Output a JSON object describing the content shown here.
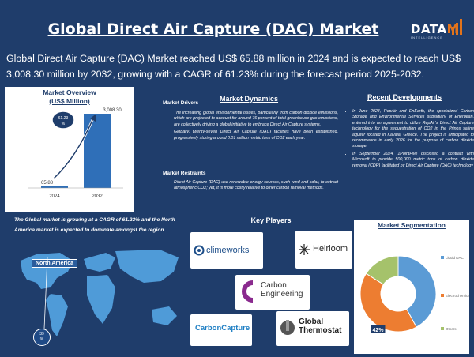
{
  "title": "Global Direct Air Capture (DAC) Market",
  "logo": {
    "main": "DATA",
    "tail": "M",
    "tagline": "INTELLIGENCE"
  },
  "lead": "Global Direct Air Capture (DAC) Market reached US$ 65.88 million in 2024 and is expected to reach US$ 3,008.30 million by 2032, growing with a CAGR of 61.23% during the forecast period 2025-2032.",
  "overview": {
    "heading": "Market Overview",
    "subheading": "(US$ Million)",
    "cagr_label": "61.23",
    "cagr_unit": "%"
  },
  "chart_data": [
    {
      "type": "bar",
      "categories": [
        "2024",
        "2032"
      ],
      "values": [
        65.88,
        3008.3
      ],
      "value_labels": [
        "65.88",
        "3,008.30"
      ],
      "title": "Market Overview",
      "ylabel": "(US$ Million)",
      "colors": [
        "#2f6fb8",
        "#2f6fb8"
      ]
    },
    {
      "type": "pie",
      "title": "Market Segmentation",
      "categories": [
        "Liquid DAC",
        "Electrochemical DAC",
        "Others"
      ],
      "values": [
        42,
        42,
        16
      ],
      "value_labels": [
        "",
        "42%",
        ""
      ],
      "colors": [
        "#5b9bd5",
        "#ed7d31",
        "#a5c26b"
      ]
    }
  ],
  "dynamics": {
    "heading": "Market Dynamics",
    "drivers_title": "Market Drivers",
    "drivers": [
      "The increasing global environmental issues, particularly from carbon dioxide emissions, which are projected to account for around 76 percent of total greenhouse gas emissions, are collectively driving a global initiative to embrace Direct Air Capture systems.",
      "Globally, twenty-seven Direct Air Capture (DAC) facilities have been established, progressively storing around 0.01 million metric tons of CO2 each year."
    ],
    "restraints_title": "Market Restraints",
    "restraints": [
      "Direct Air Capture (DAC) use renewable energy sources, such wind and solar, to extract atmospheric CO2; yet, it is more costly relative to other carbon removal methods."
    ]
  },
  "developments": {
    "heading": "Recent Developments",
    "items": [
      "In June 2024, RepAir and EnEarth, the specialized Carbon Storage and Environmental Services subsidiary of Energean, entered into an agreement to utilize RepAir's Direct Air Capture technology for the sequestration of CO2 in the Prinos saline aquifer located in Kavala, Greece. The project is anticipated to recommence in early 2026 for the purpose of carbon dioxide storage.",
      "In September 2024, 1PointFive disclosed a contract with Microsoft to provide 500,000 metric tons of carbon dioxide removal (CDR) facilitated by Direct Air Capture (DAC) technology"
    ]
  },
  "region": {
    "text": "The Global market is growing at a CAGR of 61.23% and the North America market is expected to dominate amongst the region.",
    "callout": "North America",
    "badge_value": "39",
    "badge_unit": "%"
  },
  "players": {
    "heading": "Key Players",
    "logos": [
      "climeworks",
      "Heirloom",
      "Carbon Engineering",
      "CarbonCapture",
      "Global Thermostat"
    ]
  },
  "segmentation": {
    "heading": "Market Segmentation"
  }
}
